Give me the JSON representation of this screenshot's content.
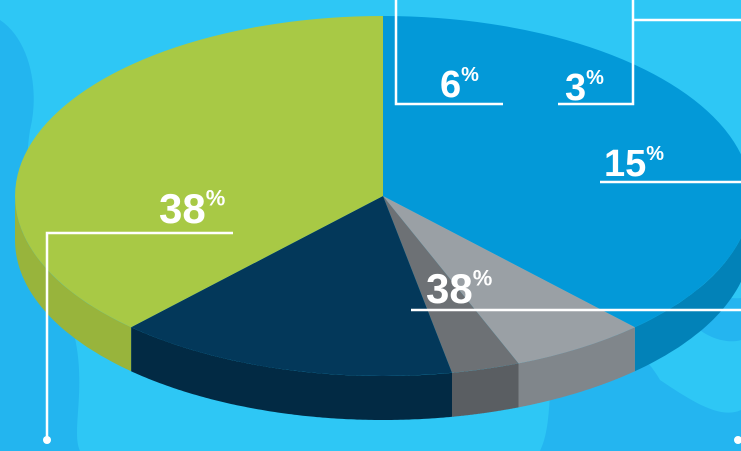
{
  "chart_data": {
    "type": "pie",
    "style": "3d",
    "title": "",
    "slices": [
      {
        "value": 38,
        "label": "38",
        "unit": "%",
        "color": "#0399D8",
        "side_color": "#0282B8"
      },
      {
        "value": 6,
        "label": "6",
        "unit": "%",
        "color": "#9AA0A5",
        "side_color": "#80868B"
      },
      {
        "value": 3,
        "label": "3",
        "unit": "%",
        "color": "#6D7175",
        "side_color": "#5A5E62"
      },
      {
        "value": 15,
        "label": "15",
        "unit": "%",
        "color": "#03385A",
        "side_color": "#022A44"
      },
      {
        "value": 38,
        "label": "38",
        "unit": "%",
        "color": "#A8C945",
        "side_color": "#98B43C"
      }
    ]
  },
  "colors": {
    "background": "#2EC7F5",
    "map_accent": "#22B2EE",
    "leader_line": "#FFFFFF"
  }
}
